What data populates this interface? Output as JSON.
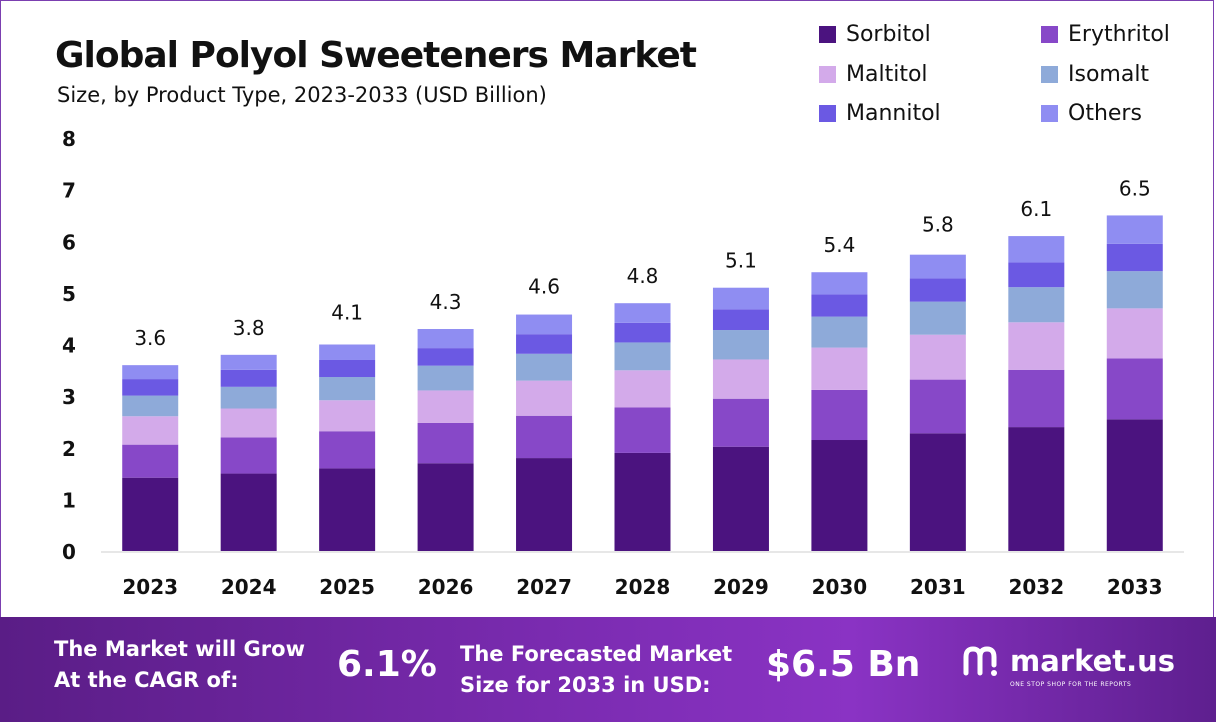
{
  "header": {
    "title": "Global Polyol Sweeteners Market",
    "subtitle": "Size, by Product Type, 2023-2033 (USD Billion)"
  },
  "colors": {
    "Sorbitol": "#4b137f",
    "Erythritol": "#8748c8",
    "Maltitol": "#d3aaea",
    "Isomalt": "#8eaad9",
    "Mannitol": "#6b59e3",
    "Others": "#8f8df2",
    "banner": "#7a2bb0"
  },
  "chart_data": {
    "type": "bar",
    "stacked": true,
    "title": "Global Polyol Sweeteners Market",
    "subtitle": "Size, by Product Type, 2023-2033 (USD Billion)",
    "categories": [
      "2023",
      "2024",
      "2025",
      "2026",
      "2027",
      "2028",
      "2029",
      "2030",
      "2031",
      "2032",
      "2033"
    ],
    "series": [
      {
        "name": "Sorbitol",
        "values": [
          1.42,
          1.5,
          1.6,
          1.7,
          1.8,
          1.9,
          2.02,
          2.15,
          2.28,
          2.4,
          2.55
        ]
      },
      {
        "name": "Erythritol",
        "values": [
          0.64,
          0.7,
          0.72,
          0.78,
          0.82,
          0.88,
          0.93,
          0.97,
          1.04,
          1.11,
          1.18
        ]
      },
      {
        "name": "Maltitol",
        "values": [
          0.55,
          0.56,
          0.6,
          0.63,
          0.68,
          0.72,
          0.76,
          0.82,
          0.87,
          0.92,
          0.97
        ]
      },
      {
        "name": "Isomalt",
        "values": [
          0.4,
          0.42,
          0.45,
          0.48,
          0.52,
          0.54,
          0.57,
          0.6,
          0.64,
          0.68,
          0.72
        ]
      },
      {
        "name": "Mannitol",
        "values": [
          0.32,
          0.33,
          0.33,
          0.34,
          0.38,
          0.38,
          0.4,
          0.43,
          0.45,
          0.48,
          0.53
        ]
      },
      {
        "name": "Others",
        "values": [
          0.27,
          0.29,
          0.3,
          0.37,
          0.38,
          0.38,
          0.42,
          0.43,
          0.46,
          0.51,
          0.55
        ]
      }
    ],
    "totals": [
      3.6,
      3.8,
      4.1,
      4.3,
      4.6,
      4.8,
      5.1,
      5.4,
      5.8,
      6.1,
      6.5
    ],
    "total_labels": [
      "3.6",
      "3.8",
      "4.1",
      "4.3",
      "4.6",
      "4.8",
      "5.1",
      "5.4",
      "5.8",
      "6.1",
      "6.5"
    ],
    "yticks": [
      "0",
      "1",
      "2",
      "3",
      "4",
      "5",
      "6",
      "7",
      "8"
    ],
    "ylim": [
      0,
      8
    ],
    "grid": false,
    "legend_position": "top-right"
  },
  "legend": {
    "items": [
      "Sorbitol",
      "Erythritol",
      "Maltitol",
      "Isomalt",
      "Mannitol",
      "Others"
    ]
  },
  "banner": {
    "cagr_label_line1": "The Market will Grow",
    "cagr_label_line2": "At the CAGR of:",
    "cagr_value": "6.1%",
    "forecast_label_line1": "The Forecasted Market",
    "forecast_label_line2": "Size for 2033 in USD:",
    "forecast_value": "$6.5 Bn",
    "logo_text": "market.us",
    "logo_tagline": "ONE STOP SHOP FOR THE REPORTS"
  }
}
